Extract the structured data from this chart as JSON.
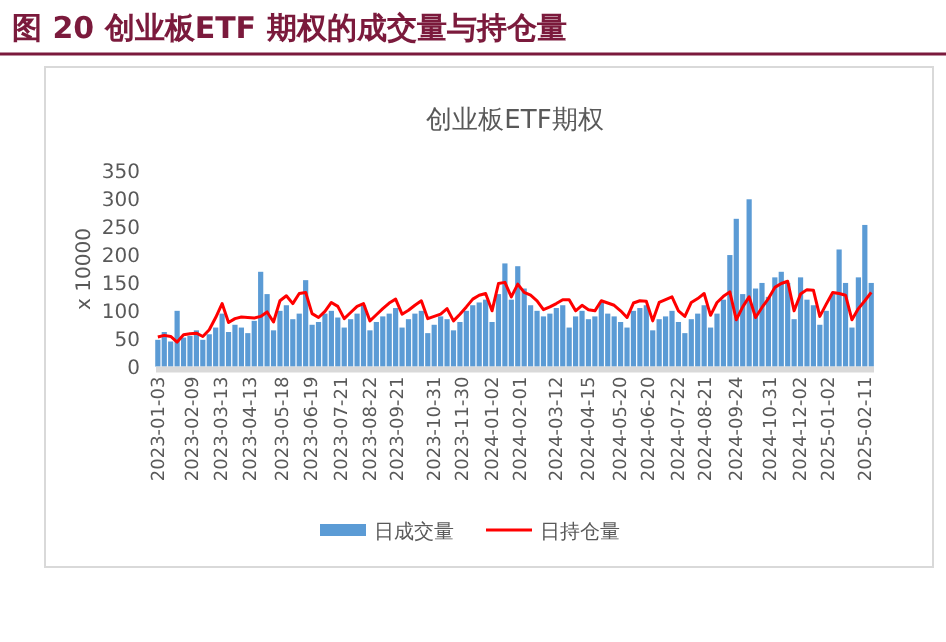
{
  "chart_data": {
    "type": "bar",
    "title": "图 20 创业板ETF 期权的成交量与持仓量",
    "subtitle": "创业板ETF期权",
    "ylabel": "x 10000",
    "x": [
      "2023-01-03",
      "2023-01-10",
      "2023-01-17",
      "2023-01-24",
      "2023-01-31",
      "2023-02-07",
      "2023-02-14",
      "2023-02-21",
      "2023-02-28",
      "2023-03-07",
      "2023-03-14",
      "2023-03-21",
      "2023-03-28",
      "2023-04-04",
      "2023-04-11",
      "2023-04-18",
      "2023-04-25",
      "2023-05-02",
      "2023-05-09",
      "2023-05-16",
      "2023-05-23",
      "2023-05-30",
      "2023-06-06",
      "2023-06-13",
      "2023-06-20",
      "2023-06-27",
      "2023-07-04",
      "2023-07-11",
      "2023-07-18",
      "2023-07-25",
      "2023-08-01",
      "2023-08-08",
      "2023-08-15",
      "2023-08-22",
      "2023-08-29",
      "2023-09-05",
      "2023-09-12",
      "2023-09-19",
      "2023-09-26",
      "2023-10-03",
      "2023-10-10",
      "2023-10-17",
      "2023-10-24",
      "2023-10-31",
      "2023-11-07",
      "2023-11-14",
      "2023-11-21",
      "2023-11-28",
      "2023-12-05",
      "2023-12-12",
      "2023-12-19",
      "2023-12-26",
      "2024-01-02",
      "2024-01-09",
      "2024-01-16",
      "2024-01-23",
      "2024-01-30",
      "2024-02-06",
      "2024-02-13",
      "2024-02-20",
      "2024-02-27",
      "2024-03-05",
      "2024-03-12",
      "2024-03-19",
      "2024-03-26",
      "2024-04-02",
      "2024-04-09",
      "2024-04-16",
      "2024-04-23",
      "2024-04-30",
      "2024-05-07",
      "2024-05-14",
      "2024-05-21",
      "2024-05-28",
      "2024-06-04",
      "2024-06-11",
      "2024-06-18",
      "2024-06-25",
      "2024-07-02",
      "2024-07-09",
      "2024-07-16",
      "2024-07-23",
      "2024-07-30",
      "2024-08-06",
      "2024-08-13",
      "2024-08-20",
      "2024-08-27",
      "2024-09-03",
      "2024-09-10",
      "2024-09-17",
      "2024-09-24",
      "2024-10-01",
      "2024-10-08",
      "2024-10-15",
      "2024-10-22",
      "2024-10-29",
      "2024-11-05",
      "2024-11-12",
      "2024-11-19",
      "2024-11-26",
      "2024-12-03",
      "2024-12-10",
      "2024-12-17",
      "2024-12-24",
      "2024-12-31",
      "2025-01-07",
      "2025-01-14",
      "2025-01-21",
      "2025-01-28",
      "2025-02-04",
      "2025-02-11",
      "2025-02-18"
    ],
    "series": [
      {
        "name": "日成交量",
        "color": "#5b9bd5",
        "values": [
          48,
          62,
          45,
          100,
          52,
          55,
          65,
          48,
          58,
          70,
          95,
          62,
          75,
          70,
          60,
          82,
          170,
          130,
          65,
          100,
          110,
          85,
          95,
          155,
          75,
          80,
          95,
          100,
          88,
          70,
          85,
          95,
          110,
          65,
          80,
          90,
          95,
          105,
          70,
          85,
          95,
          100,
          60,
          75,
          90,
          85,
          65,
          80,
          100,
          110,
          115,
          120,
          80,
          130,
          185,
          120,
          180,
          140,
          110,
          100,
          90,
          95,
          105,
          110,
          70,
          90,
          100,
          85,
          90,
          115,
          95,
          90,
          80,
          70,
          100,
          105,
          110,
          65,
          85,
          90,
          100,
          80,
          60,
          85,
          95,
          110,
          70,
          95,
          120,
          200,
          265,
          130,
          300,
          140,
          150,
          125,
          160,
          170,
          150,
          85,
          160,
          120,
          110,
          75,
          100,
          130,
          210,
          150,
          70,
          160,
          254,
          150
        ]
      },
      {
        "name": "日持仓量",
        "type": "line",
        "color": "#ff0000",
        "values": [
          53,
          56,
          54,
          44,
          57,
          59,
          60,
          54,
          66,
          88,
          113,
          79,
          86,
          89,
          88,
          87,
          90,
          98,
          80,
          118,
          127,
          113,
          131,
          133,
          95,
          88,
          99,
          115,
          108,
          86,
          97,
          108,
          113,
          82,
          93,
          104,
          114,
          121,
          94,
          101,
          110,
          118,
          86,
          90,
          94,
          104,
          82,
          94,
          107,
          121,
          128,
          131,
          100,
          149,
          151,
          125,
          148,
          133,
          128,
          118,
          102,
          107,
          113,
          120,
          120,
          100,
          110,
          102,
          100,
          118,
          114,
          110,
          100,
          88,
          114,
          118,
          117,
          82,
          115,
          120,
          125,
          100,
          90,
          115,
          122,
          131,
          92,
          115,
          126,
          134,
          84,
          107,
          125,
          88,
          106,
          122,
          142,
          149,
          153,
          100,
          130,
          138,
          137,
          90,
          112,
          133,
          131,
          128,
          84,
          104,
          118,
          133
        ]
      }
    ],
    "xlim": [
      "2023-01-01",
      "2025-02-21"
    ],
    "xticks": [
      "2023-01-03",
      "2023-02-09",
      "2023-03-13",
      "2023-04-13",
      "2023-05-18",
      "2023-06-19",
      "2023-07-21",
      "2023-08-22",
      "2023-09-21",
      "2023-10-31",
      "2023-11-30",
      "2024-01-02",
      "2024-02-01",
      "2024-03-12",
      "2024-04-15",
      "2024-05-20",
      "2024-06-20",
      "2024-07-22",
      "2024-08-21",
      "2024-09-24",
      "2024-10-31",
      "2024-12-02",
      "2025-01-02",
      "2025-02-11"
    ],
    "ylim": [
      0,
      350
    ],
    "yticks": [
      0,
      50,
      100,
      150,
      200,
      250,
      300,
      350
    ],
    "legend": "bottom"
  }
}
